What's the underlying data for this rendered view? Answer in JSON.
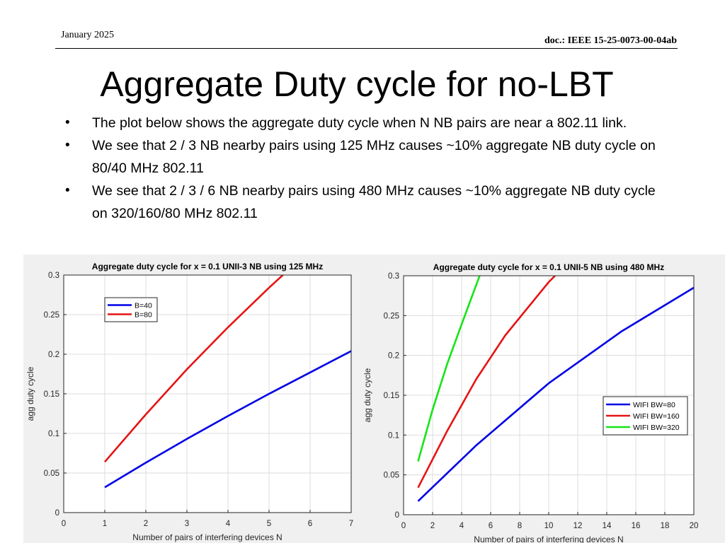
{
  "header": {
    "date": "January 2025",
    "doc": "doc.: IEEE 15-25-0073-00-04ab"
  },
  "slide": {
    "title": "Aggregate Duty cycle for no-LBT",
    "bullets": [
      "The plot below shows the aggregate duty cycle when N NB pairs are near a 802.11 link.",
      "We see that 2 / 3 NB nearby pairs using 125 MHz causes ~10% aggregate NB duty cycle on 80/40 MHz 802.11",
      "We see that 2 / 3 / 6 NB nearby pairs using 480 MHz causes ~10% aggregate NB duty cycle on 320/160/80 MHz 802.11"
    ]
  },
  "colors": {
    "blue": "#0000e6",
    "red": "#e61414",
    "green": "#14e614",
    "grid": "#dcdcdc",
    "panel": "#f0f0f0"
  },
  "chart_data": [
    {
      "type": "line",
      "title": "Aggregate duty cycle for x = 0.1 UNII-3 NB using 125 MHz",
      "xlabel": "Number of pairs of interfering devices N",
      "ylabel": "agg duty cycle",
      "xlim": [
        0,
        7
      ],
      "ylim": [
        0,
        0.3
      ],
      "xticks": [
        0,
        1,
        2,
        3,
        4,
        5,
        6,
        7
      ],
      "yticks": [
        0,
        0.05,
        0.1,
        0.15,
        0.2,
        0.25,
        0.3
      ],
      "grid": true,
      "legend_position": "top-left",
      "series": [
        {
          "name": "B=40",
          "color": "#0000e6",
          "x": [
            1,
            2,
            3,
            4,
            5,
            6,
            7
          ],
          "y": [
            0.032,
            0.063,
            0.093,
            0.122,
            0.15,
            0.177,
            0.204
          ]
        },
        {
          "name": "B=80",
          "color": "#e61414",
          "x": [
            1,
            2,
            3,
            4,
            5,
            5.4
          ],
          "y": [
            0.064,
            0.124,
            0.181,
            0.234,
            0.284,
            0.303
          ]
        }
      ]
    },
    {
      "type": "line",
      "title": "Aggregate duty cycle for x = 0.1 UNII-5 NB using 480 MHz",
      "xlabel": "Number of pairs of interfering devices N",
      "ylabel": "agg duty cycle",
      "xlim": [
        0,
        20
      ],
      "ylim": [
        0,
        0.3
      ],
      "xticks": [
        0,
        2,
        4,
        6,
        8,
        10,
        12,
        14,
        16,
        18,
        20
      ],
      "yticks": [
        0,
        0.05,
        0.1,
        0.15,
        0.2,
        0.25,
        0.3
      ],
      "grid": true,
      "legend_position": "right",
      "series": [
        {
          "name": "WIFI BW=80",
          "color": "#0000e6",
          "x": [
            1,
            5,
            10,
            15,
            20
          ],
          "y": [
            0.017,
            0.087,
            0.165,
            0.23,
            0.285
          ]
        },
        {
          "name": "WIFI BW=160",
          "color": "#e61414",
          "x": [
            1,
            3,
            5,
            7,
            10,
            10.6
          ],
          "y": [
            0.034,
            0.105,
            0.17,
            0.225,
            0.292,
            0.303
          ]
        },
        {
          "name": "WIFI BW=320",
          "color": "#14e614",
          "x": [
            1,
            2,
            3,
            4,
            5.3
          ],
          "y": [
            0.067,
            0.132,
            0.189,
            0.239,
            0.303
          ]
        }
      ]
    }
  ]
}
